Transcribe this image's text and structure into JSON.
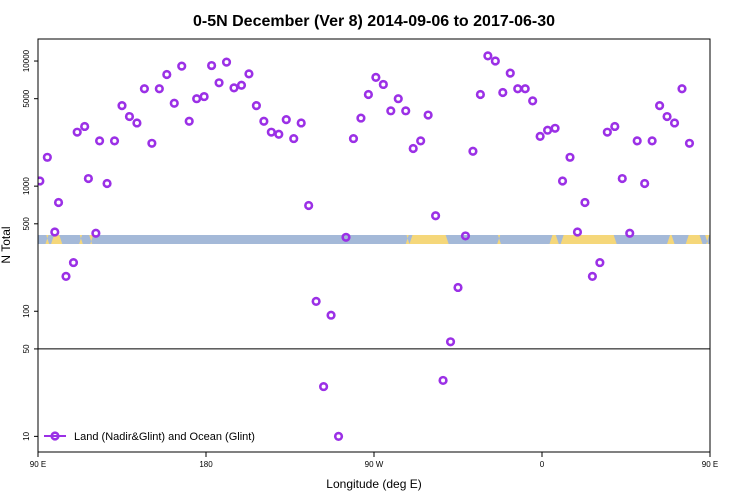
{
  "chart_data": {
    "type": "scatter",
    "title": "0-5N December (Ver 8)   2014-09-06 to 2017-06-30",
    "xlabel": "Longitude (deg E)",
    "ylabel": "N Total",
    "y_scale": "log",
    "xlim": [
      90,
      450
    ],
    "ylim": [
      7.5,
      15000
    ],
    "x_ticks": [
      {
        "value": 90,
        "label": "90 E"
      },
      {
        "value": 180,
        "label": "180"
      },
      {
        "value": 270,
        "label": "90 W"
      },
      {
        "value": 360,
        "label": "0"
      },
      {
        "value": 450,
        "label": "90 E"
      },
      {
        "value": 540,
        "label": "180"
      }
    ],
    "y_ticks": [
      {
        "value": 10,
        "label": "10"
      },
      {
        "value": 50,
        "label": "50"
      },
      {
        "value": 100,
        "label": "100"
      },
      {
        "value": 500,
        "label": "500"
      },
      {
        "value": 1000,
        "label": "1000"
      },
      {
        "value": 5000,
        "label": "5000"
      },
      {
        "value": 10000,
        "label": "10000"
      }
    ],
    "reference_line": {
      "y": 50
    },
    "land_ocean_strip": {
      "ocean_color": "#a4b9d8",
      "land_color": "#f5d77a",
      "land_segments": [
        [
          94,
          96
        ],
        [
          97,
          103
        ],
        [
          112,
          114
        ],
        [
          118,
          119
        ],
        [
          287,
          289
        ],
        [
          289,
          310
        ],
        [
          336,
          338
        ],
        [
          364,
          369
        ],
        [
          370,
          400
        ],
        [
          427,
          431
        ],
        [
          437,
          446
        ],
        [
          448,
          449
        ]
      ]
    },
    "series": [
      {
        "name": "Land (Nadir&Glint) and Ocean (Glint)",
        "color": "#9b30e6",
        "marker": "open-circle",
        "points": [
          [
            91,
            1100
          ],
          [
            95,
            1700
          ],
          [
            99,
            430
          ],
          [
            101,
            740
          ],
          [
            105,
            190
          ],
          [
            109,
            245
          ],
          [
            111,
            2700
          ],
          [
            115,
            3000
          ],
          [
            117,
            1150
          ],
          [
            121,
            420
          ],
          [
            123,
            2300
          ],
          [
            127,
            1050
          ],
          [
            131,
            2300
          ],
          [
            135,
            4400
          ],
          [
            139,
            3600
          ],
          [
            143,
            3200
          ],
          [
            147,
            6000
          ],
          [
            151,
            2200
          ],
          [
            155,
            6000
          ],
          [
            159,
            7800
          ],
          [
            163,
            4600
          ],
          [
            167,
            9100
          ],
          [
            171,
            3300
          ],
          [
            175,
            5000
          ],
          [
            179,
            5200
          ],
          [
            183,
            9200
          ],
          [
            187,
            6700
          ],
          [
            191,
            9800
          ],
          [
            195,
            6100
          ],
          [
            199,
            6400
          ],
          [
            203,
            7900
          ],
          [
            207,
            4400
          ],
          [
            211,
            3300
          ],
          [
            215,
            2700
          ],
          [
            219,
            2600
          ],
          [
            223,
            3400
          ],
          [
            227,
            2400
          ],
          [
            231,
            3200
          ],
          [
            235,
            700
          ],
          [
            239,
            120
          ],
          [
            243,
            25
          ],
          [
            247,
            93
          ],
          [
            251,
            10
          ],
          [
            255,
            390
          ],
          [
            259,
            2400
          ],
          [
            263,
            3500
          ],
          [
            267,
            5400
          ],
          [
            271,
            7400
          ],
          [
            275,
            6500
          ],
          [
            279,
            4000
          ],
          [
            283,
            5000
          ],
          [
            287,
            4000
          ],
          [
            291,
            2000
          ],
          [
            295,
            2300
          ],
          [
            299,
            3700
          ],
          [
            303,
            580
          ],
          [
            307,
            28
          ],
          [
            311,
            57
          ],
          [
            315,
            155
          ],
          [
            319,
            400
          ],
          [
            323,
            1900
          ],
          [
            327,
            5400
          ],
          [
            331,
            11000
          ],
          [
            335,
            10000
          ],
          [
            339,
            5600
          ],
          [
            343,
            8000
          ],
          [
            347,
            6000
          ],
          [
            351,
            6000
          ],
          [
            355,
            4800
          ],
          [
            359,
            2500
          ],
          [
            363,
            2800
          ],
          [
            367,
            2900
          ],
          [
            371,
            1100
          ],
          [
            375,
            1700
          ],
          [
            379,
            430
          ],
          [
            383,
            740
          ],
          [
            387,
            190
          ],
          [
            391,
            245
          ],
          [
            395,
            2700
          ],
          [
            399,
            3000
          ],
          [
            403,
            1150
          ],
          [
            407,
            420
          ],
          [
            411,
            2300
          ],
          [
            415,
            1050
          ],
          [
            419,
            2300
          ],
          [
            423,
            4400
          ],
          [
            427,
            3600
          ],
          [
            431,
            3200
          ],
          [
            435,
            6000
          ],
          [
            439,
            2200
          ]
        ]
      }
    ],
    "legend": {
      "position": "bottom-left"
    }
  }
}
